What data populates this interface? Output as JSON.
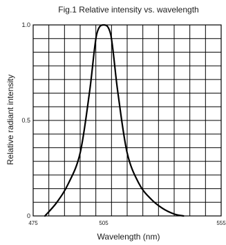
{
  "chart_data": {
    "type": "line",
    "title": "Fig.1 Relative intensity vs. wavelength",
    "xlabel": "Wavelength (nm)",
    "ylabel": "Relative radiant intensity",
    "xlim": [
      475,
      555
    ],
    "ylim": [
      0,
      1.0
    ],
    "x_ticks": [
      475,
      505,
      555
    ],
    "y_ticks": [
      0,
      0.5,
      1.0
    ],
    "x_tick_labels": [
      "475",
      "505",
      "555"
    ],
    "y_tick_labels": [
      "0",
      "0.5",
      "1.0"
    ],
    "grid": true,
    "grid_columns": 12,
    "grid_rows": 14,
    "series": [
      {
        "x": [
          480,
          485,
          490,
          495,
          499,
          502,
          505,
          508,
          511,
          515,
          520,
          525,
          530,
          535,
          539
        ],
        "y": [
          0.0,
          0.07,
          0.17,
          0.33,
          0.65,
          0.95,
          1.0,
          0.95,
          0.65,
          0.33,
          0.17,
          0.09,
          0.04,
          0.01,
          0.0
        ]
      }
    ]
  }
}
